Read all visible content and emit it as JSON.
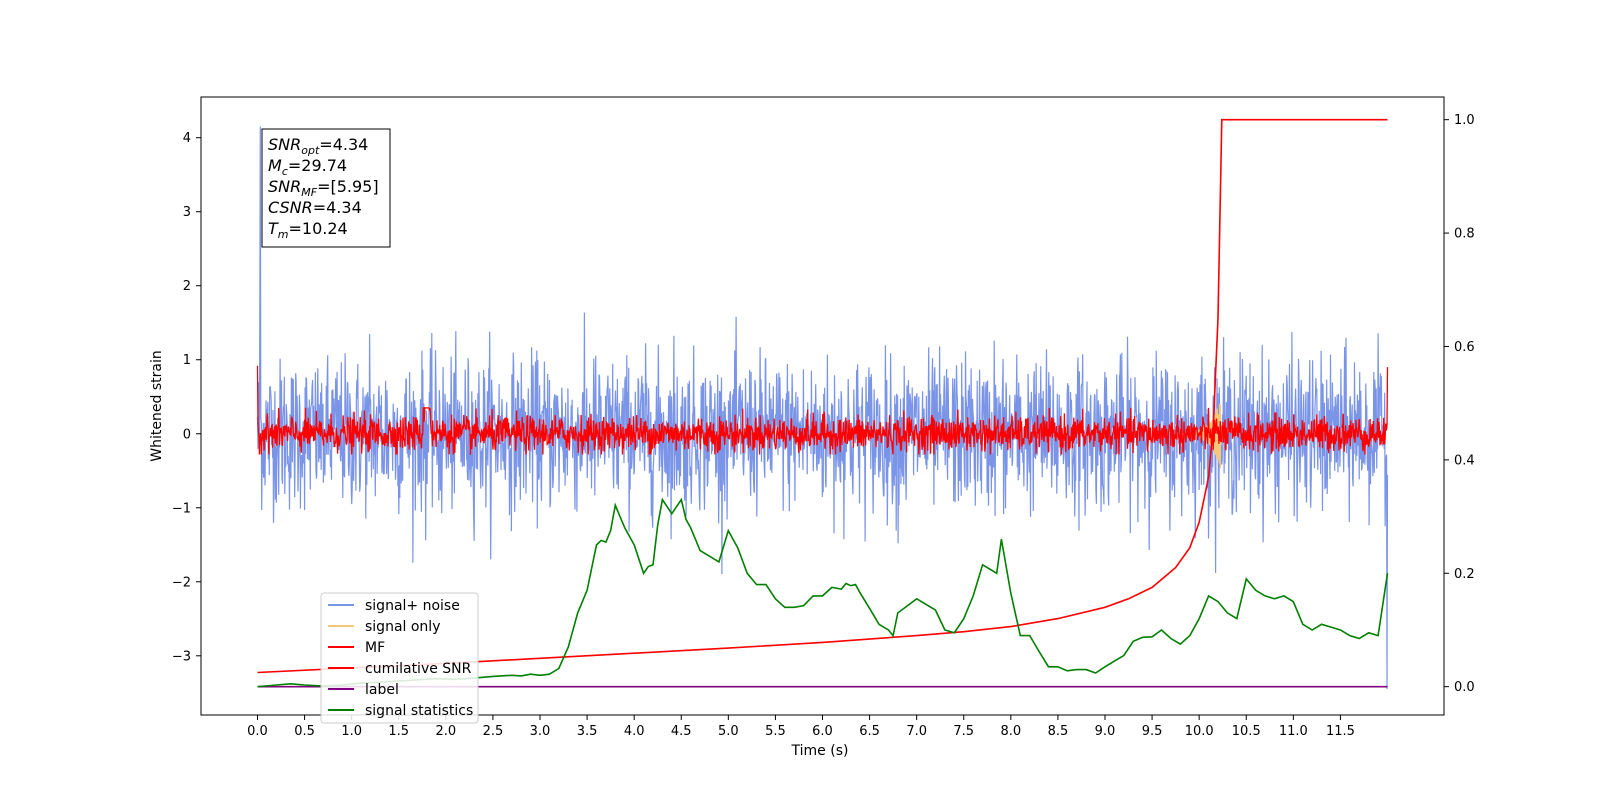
{
  "chart_data": {
    "type": "line",
    "xlabel": "Time (s)",
    "ylabel": "Whitened strain",
    "ylabel_right": "",
    "xlim": [
      -0.6,
      12.6
    ],
    "ylim": [
      -3.8,
      4.55
    ],
    "ylim_right": [
      -0.05,
      1.04
    ],
    "x_ticks": [
      0.0,
      0.5,
      1.0,
      1.5,
      2.0,
      2.5,
      3.0,
      3.5,
      4.0,
      4.5,
      5.0,
      5.5,
      6.0,
      6.5,
      7.0,
      7.5,
      8.0,
      8.5,
      9.0,
      9.5,
      10.0,
      10.5,
      11.0,
      11.5
    ],
    "x_tick_labels": [
      "0.0",
      "0.5",
      "1.0",
      "1.5",
      "2.0",
      "2.5",
      "3.0",
      "3.5",
      "4.0",
      "4.5",
      "5.0",
      "5.5",
      "6.0",
      "6.5",
      "7.0",
      "7.5",
      "8.0",
      "8.5",
      "9.0",
      "9.5",
      "10.0",
      "10.5",
      "11.0",
      "11.5"
    ],
    "y_ticks": [
      -3,
      -2,
      -1,
      0,
      1,
      2,
      3,
      4
    ],
    "y_tick_labels": [
      "−3",
      "−2",
      "−1",
      "0",
      "1",
      "2",
      "3",
      "4"
    ],
    "y_ticks_right": [
      0.0,
      0.2,
      0.4,
      0.6,
      0.8,
      1.0
    ],
    "y_tick_labels_right": [
      "0.0",
      "0.2",
      "0.4",
      "0.6",
      "0.8",
      "1.0"
    ],
    "grid": false,
    "legend_position": "lower-left",
    "stats_box": [
      {
        "sym": "SNR",
        "sub": "opt",
        "value": "=4.34"
      },
      {
        "sym": "M",
        "sub": "c",
        "value": "=29.74"
      },
      {
        "sym": "SNR",
        "sub": "MF",
        "value": "=[5.95]"
      },
      {
        "sym": "CSNR",
        "sub": "",
        "value": "=4.34"
      },
      {
        "sym": "T",
        "sub": "m",
        "value": "=10.24"
      }
    ],
    "series": [
      {
        "name": "signal+ noise",
        "color": "#7a94e8",
        "axis": "left",
        "description": "whitened noise, amplitude ~±1.5"
      },
      {
        "name": "signal only",
        "color": "#f5c87a",
        "axis": "left",
        "peak_time": 10.24
      },
      {
        "name": "MF",
        "color": "#ff0000",
        "axis": "left",
        "description": "matched filter output, amplitude ~±0.3"
      },
      {
        "name": "cumilative SNR",
        "color": "#ff0000",
        "axis": "right",
        "x": [
          0.0,
          1.0,
          2.0,
          3.0,
          4.0,
          5.0,
          6.0,
          7.0,
          7.5,
          8.0,
          8.5,
          9.0,
          9.25,
          9.5,
          9.75,
          9.9,
          10.0,
          10.1,
          10.15,
          10.2,
          10.24,
          10.5,
          11.0,
          11.5,
          12.0
        ],
        "values": [
          0.025,
          0.033,
          0.041,
          0.05,
          0.059,
          0.068,
          0.078,
          0.09,
          0.097,
          0.106,
          0.12,
          0.14,
          0.155,
          0.175,
          0.21,
          0.245,
          0.29,
          0.37,
          0.46,
          0.65,
          1.0,
          1.0,
          1.0,
          1.0,
          1.0
        ]
      },
      {
        "name": "label",
        "color": "#800080",
        "axis": "right",
        "x": [
          0.0,
          12.0
        ],
        "values": [
          0.0,
          0.0
        ]
      },
      {
        "name": "signal statistics",
        "color": "#008000",
        "axis": "right",
        "x": [
          0.0,
          0.2,
          0.35,
          0.5,
          0.7,
          0.9,
          1.1,
          1.3,
          1.5,
          1.7,
          1.9,
          2.1,
          2.3,
          2.5,
          2.7,
          2.8,
          2.9,
          3.0,
          3.1,
          3.2,
          3.3,
          3.4,
          3.5,
          3.6,
          3.65,
          3.7,
          3.75,
          3.8,
          3.85,
          3.9,
          4.0,
          4.1,
          4.15,
          4.2,
          4.25,
          4.3,
          4.4,
          4.5,
          4.55,
          4.6,
          4.65,
          4.7,
          4.8,
          4.9,
          5.0,
          5.05,
          5.1,
          5.2,
          5.3,
          5.4,
          5.5,
          5.6,
          5.7,
          5.8,
          5.9,
          6.0,
          6.1,
          6.2,
          6.25,
          6.3,
          6.35,
          6.4,
          6.5,
          6.6,
          6.7,
          6.75,
          6.8,
          7.0,
          7.1,
          7.2,
          7.3,
          7.4,
          7.5,
          7.6,
          7.7,
          7.8,
          7.85,
          7.9,
          8.0,
          8.1,
          8.2,
          8.3,
          8.4,
          8.5,
          8.6,
          8.7,
          8.8,
          8.9,
          9.0,
          9.1,
          9.2,
          9.3,
          9.4,
          9.5,
          9.6,
          9.7,
          9.8,
          9.9,
          10.0,
          10.1,
          10.2,
          10.3,
          10.4,
          10.5,
          10.6,
          10.7,
          10.8,
          10.9,
          11.0,
          11.1,
          11.2,
          11.3,
          11.4,
          11.5,
          11.6,
          11.7,
          11.8,
          11.9,
          12.0
        ],
        "values": [
          0.0,
          0.003,
          0.005,
          0.003,
          0.001,
          0.003,
          0.006,
          0.008,
          0.01,
          0.012,
          0.014,
          0.013,
          0.015,
          0.018,
          0.02,
          0.019,
          0.022,
          0.02,
          0.022,
          0.032,
          0.07,
          0.13,
          0.17,
          0.25,
          0.258,
          0.255,
          0.275,
          0.32,
          0.3,
          0.28,
          0.25,
          0.2,
          0.212,
          0.215,
          0.285,
          0.33,
          0.305,
          0.33,
          0.295,
          0.28,
          0.26,
          0.24,
          0.23,
          0.22,
          0.275,
          0.26,
          0.245,
          0.2,
          0.18,
          0.18,
          0.155,
          0.14,
          0.14,
          0.143,
          0.16,
          0.16,
          0.175,
          0.172,
          0.182,
          0.178,
          0.18,
          0.165,
          0.138,
          0.11,
          0.1,
          0.09,
          0.13,
          0.155,
          0.145,
          0.135,
          0.1,
          0.095,
          0.12,
          0.16,
          0.215,
          0.205,
          0.2,
          0.26,
          0.165,
          0.09,
          0.09,
          0.062,
          0.035,
          0.035,
          0.028,
          0.03,
          0.03,
          0.024,
          0.035,
          0.045,
          0.055,
          0.08,
          0.087,
          0.088,
          0.1,
          0.085,
          0.075,
          0.09,
          0.12,
          0.16,
          0.15,
          0.13,
          0.12,
          0.19,
          0.17,
          0.16,
          0.155,
          0.16,
          0.15,
          0.11,
          0.1,
          0.11,
          0.105,
          0.1,
          0.09,
          0.085,
          0.095,
          0.09,
          0.2
        ]
      }
    ]
  }
}
